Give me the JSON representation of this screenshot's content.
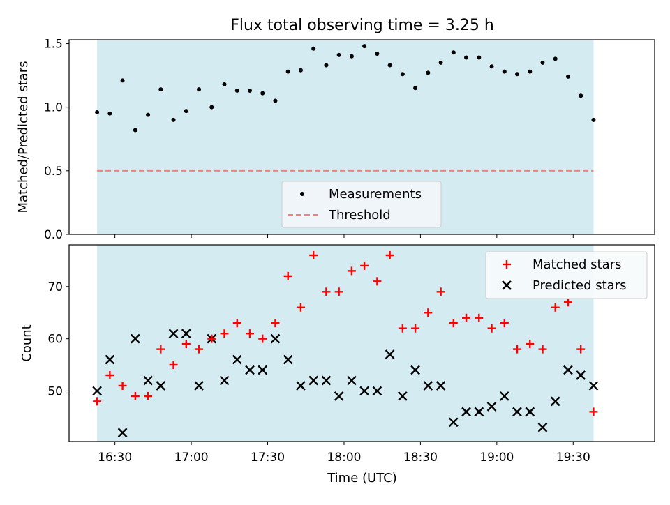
{
  "figure": {
    "title": "Flux total observing time = 3.25 h"
  },
  "colors": {
    "band": "#d4ebf1",
    "threshold": "#f08080",
    "matched": "#ff0000",
    "predicted": "#000000",
    "measurement": "#000000"
  },
  "chart_data": [
    {
      "type": "scatter",
      "ylabel": "Matched/Predicted stars",
      "ylim": [
        0,
        1.53
      ],
      "yticks": [
        "0.0",
        "0.5",
        "1.0",
        "1.5"
      ],
      "xlim": [
        "16:12",
        "20:02"
      ],
      "shaded_span": [
        "16:23",
        "19:38"
      ],
      "threshold": 0.5,
      "legend": {
        "placement": "lower-center",
        "entries": [
          "Measurements",
          "Threshold"
        ]
      },
      "series": [
        {
          "name": "Measurements",
          "x": [
            "16:23",
            "16:28",
            "16:33",
            "16:38",
            "16:43",
            "16:48",
            "16:53",
            "16:58",
            "17:03",
            "17:08",
            "17:13",
            "17:18",
            "17:23",
            "17:28",
            "17:33",
            "17:38",
            "17:43",
            "17:48",
            "17:53",
            "17:58",
            "18:03",
            "18:08",
            "18:13",
            "18:18",
            "18:23",
            "18:28",
            "18:33",
            "18:38",
            "18:43",
            "18:48",
            "18:53",
            "18:58",
            "19:03",
            "19:08",
            "19:13",
            "19:18",
            "19:23",
            "19:28",
            "19:33",
            "19:38"
          ],
          "y": [
            0.96,
            0.95,
            1.21,
            0.82,
            0.94,
            1.14,
            0.9,
            0.97,
            1.14,
            1.0,
            1.18,
            1.13,
            1.13,
            1.11,
            1.05,
            1.28,
            1.29,
            1.46,
            1.33,
            1.41,
            1.4,
            1.48,
            1.42,
            1.33,
            1.26,
            1.15,
            1.27,
            1.35,
            1.43,
            1.39,
            1.39,
            1.32,
            1.28,
            1.26,
            1.28,
            1.35,
            1.38,
            1.24,
            1.09,
            0.9
          ]
        },
        {
          "name": "Threshold",
          "y": 0.5
        }
      ]
    },
    {
      "type": "scatter",
      "xlabel": "Time (UTC)",
      "ylabel": "Count",
      "ylim": [
        40.3,
        78
      ],
      "yticks": [
        "50",
        "60",
        "70"
      ],
      "xticks": [
        "16:30",
        "17:00",
        "17:30",
        "18:00",
        "18:30",
        "19:00",
        "19:30"
      ],
      "xlim": [
        "16:12",
        "20:02"
      ],
      "shaded_span": [
        "16:23",
        "19:38"
      ],
      "legend": {
        "placement": "upper-right",
        "entries": [
          "Matched stars",
          "Predicted stars"
        ]
      },
      "series": [
        {
          "name": "Matched stars",
          "x": [
            "16:23",
            "16:28",
            "16:33",
            "16:38",
            "16:43",
            "16:48",
            "16:53",
            "16:58",
            "17:03",
            "17:08",
            "17:13",
            "17:18",
            "17:23",
            "17:28",
            "17:33",
            "17:38",
            "17:43",
            "17:48",
            "17:53",
            "17:58",
            "18:03",
            "18:08",
            "18:13",
            "18:18",
            "18:23",
            "18:28",
            "18:33",
            "18:38",
            "18:43",
            "18:48",
            "18:53",
            "18:58",
            "19:03",
            "19:08",
            "19:13",
            "19:18",
            "19:23",
            "19:28",
            "19:33",
            "19:38"
          ],
          "y": [
            48,
            53,
            51,
            49,
            49,
            58,
            55,
            59,
            58,
            60,
            61,
            63,
            61,
            60,
            63,
            72,
            66,
            76,
            69,
            69,
            73,
            74,
            71,
            76,
            62,
            62,
            65,
            69,
            63,
            64,
            64,
            62,
            63,
            58,
            59,
            58,
            66,
            67,
            58,
            46
          ]
        },
        {
          "name": "Predicted stars",
          "x": [
            "16:23",
            "16:28",
            "16:33",
            "16:38",
            "16:43",
            "16:48",
            "16:53",
            "16:58",
            "17:03",
            "17:08",
            "17:13",
            "17:18",
            "17:23",
            "17:28",
            "17:33",
            "17:38",
            "17:43",
            "17:48",
            "17:53",
            "17:58",
            "18:03",
            "18:08",
            "18:13",
            "18:18",
            "18:23",
            "18:28",
            "18:33",
            "18:38",
            "18:43",
            "18:48",
            "18:53",
            "18:58",
            "19:03",
            "19:08",
            "19:13",
            "19:18",
            "19:23",
            "19:28",
            "19:33",
            "19:38"
          ],
          "y": [
            50,
            56,
            42,
            60,
            52,
            51,
            61,
            61,
            51,
            60,
            52,
            56,
            54,
            54,
            60,
            56,
            51,
            52,
            52,
            49,
            52,
            50,
            50,
            57,
            49,
            54,
            51,
            51,
            44,
            46,
            46,
            47,
            49,
            46,
            46,
            43,
            48,
            54,
            53,
            51
          ]
        }
      ]
    }
  ]
}
